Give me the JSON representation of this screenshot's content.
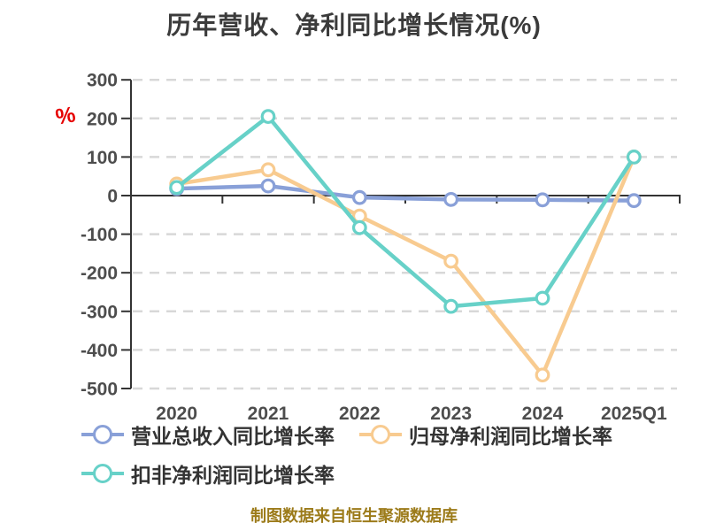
{
  "page": {
    "title": "历年营收、净利同比增长情况(%)",
    "y_axis_unit": "%",
    "caption": "制图数据来自恒生聚源数据库"
  },
  "colors": {
    "background": "#FFFFFF",
    "title_text": "#3B3B3B",
    "axis_line": "#333333",
    "grid_line": "#D8D8D8",
    "tick_label": "#4D4D4D",
    "legend_text": "#333333",
    "caption_text": "#9C7B1A",
    "unit_label": "#E60000",
    "marker_fill": "#FFFFFF"
  },
  "chart_data": {
    "type": "line",
    "title": "历年营收、净利同比增长情况(%)",
    "categories": [
      "2020",
      "2021",
      "2022",
      "2023",
      "2024",
      "2025Q1"
    ],
    "series": [
      {
        "name": "营业总收入同比增长率",
        "color": "#89A0D8",
        "values": [
          18,
          25,
          -5,
          -10,
          -11,
          -13
        ]
      },
      {
        "name": "归母净利润同比增长率",
        "color": "#F8CB90",
        "values": [
          30,
          67,
          -53,
          -170,
          -465,
          100
        ]
      },
      {
        "name": "扣非净利润同比增长率",
        "color": "#67D1C8",
        "values": [
          21,
          205,
          -83,
          -287,
          -266,
          100
        ]
      }
    ],
    "ylim": [
      -500,
      300
    ],
    "yticks": [
      300,
      200,
      100,
      0,
      -100,
      -200,
      -300,
      -400,
      -500
    ],
    "ylabel": "%",
    "xlabel": "",
    "grid": "horizontal-dashed",
    "legend_position": "bottom-left-two-rows",
    "markers": "open-circle"
  }
}
